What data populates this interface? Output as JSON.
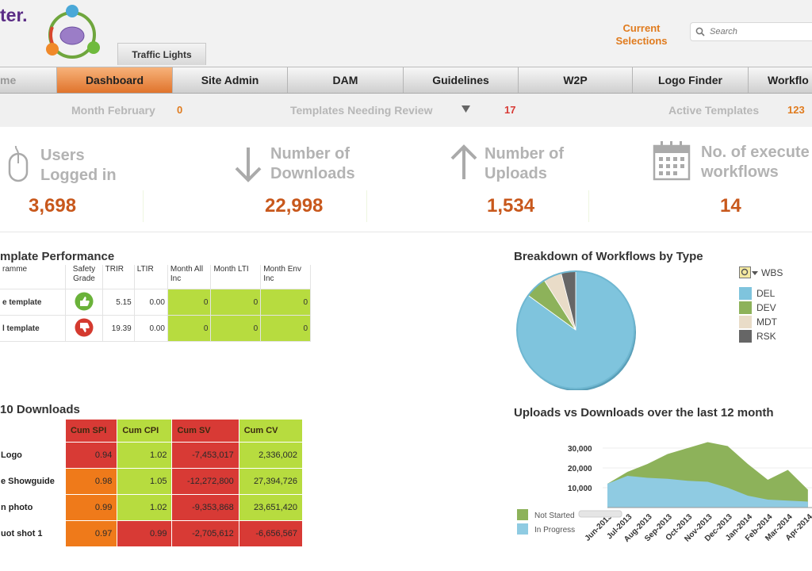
{
  "header": {
    "brand": "ter.",
    "traffic_tab": "Traffic Lights",
    "current_selections": "Current Selections",
    "search_placeholder": "Search"
  },
  "nav": {
    "items": [
      {
        "label": "me"
      },
      {
        "label": "Dashboard"
      },
      {
        "label": "Site Admin"
      },
      {
        "label": "DAM"
      },
      {
        "label": "Guidelines"
      },
      {
        "label": "W2P"
      },
      {
        "label": "Logo Finder"
      },
      {
        "label": "Workflo"
      }
    ]
  },
  "kpis": {
    "month_label": "Month February",
    "month_value": "0",
    "review_label": "Templates Needing Review",
    "review_value": "17",
    "active_label": "Active Templates",
    "active_value": "123",
    "colors": {
      "month": "#e07b1e",
      "review": "#d83a35",
      "active": "#e07b1e"
    }
  },
  "stats": [
    {
      "title_line1": "Users",
      "title_line2": "Logged in",
      "value": "3,698",
      "icon": "mouse-icon"
    },
    {
      "title_line1": "Number of",
      "title_line2": "Downloads",
      "value": "22,998",
      "icon": "arrow-down-icon"
    },
    {
      "title_line1": "Number of",
      "title_line2": "Uploads",
      "value": "1,534",
      "icon": "arrow-up-icon"
    },
    {
      "title_line1": "No. of execute",
      "title_line2": "workflows",
      "value": "14",
      "icon": "calendar-icon"
    }
  ],
  "template_performance": {
    "title": "mplate Performance",
    "headers": [
      "ramme",
      "Safety Grade",
      "TRIR",
      "LTIR",
      "Month All Inc",
      "Month LTI",
      "Month Env Inc"
    ],
    "rows": [
      {
        "name": "e template",
        "grade": "thumbs-up-icon",
        "trir": "5.15",
        "ltir": "0.00",
        "all_inc": "0",
        "lti": "0",
        "env_inc": "0"
      },
      {
        "name": "l template",
        "grade": "thumbs-down-icon",
        "trir": "19.39",
        "ltir": "0.00",
        "all_inc": "0",
        "lti": "0",
        "env_inc": "0"
      }
    ]
  },
  "top_downloads": {
    "title": "10 Downloads",
    "headers": [
      "Cum SPI",
      "Cum CPI",
      "Cum SV",
      "Cum CV"
    ],
    "header_colors": [
      "#d83a35",
      "#b7dc3f",
      "#d83a35",
      "#b7dc3f"
    ],
    "rows": [
      {
        "name": "Logo",
        "cells": [
          "0.94",
          "1.02",
          "-7,453,017",
          "2,336,002"
        ],
        "colors": [
          "#d83a35",
          "#b7dc3f",
          "#d83a35",
          "#b7dc3f"
        ]
      },
      {
        "name": "e Showguide",
        "cells": [
          "0.98",
          "1.05",
          "-12,272,800",
          "27,394,726"
        ],
        "colors": [
          "#ef7a1a",
          "#b7dc3f",
          "#d83a35",
          "#b7dc3f"
        ]
      },
      {
        "name": "n photo",
        "cells": [
          "0.99",
          "1.02",
          "-9,353,868",
          "23,651,420"
        ],
        "colors": [
          "#ef7a1a",
          "#b7dc3f",
          "#d83a35",
          "#b7dc3f"
        ]
      },
      {
        "name": "uot shot 1",
        "cells": [
          "0.97",
          "0.99",
          "-2,705,612",
          "-6,656,567"
        ],
        "colors": [
          "#ef7a1a",
          "#d83a35",
          "#d83a35",
          "#d83a35"
        ]
      }
    ]
  },
  "workflow_pie": {
    "title": "Breakdown of Workflows by Type",
    "legend_title": "WBS",
    "chart_data": {
      "type": "pie",
      "slices": [
        {
          "name": "DEL",
          "value": 85,
          "color": "#7fc4dd"
        },
        {
          "name": "DEV",
          "value": 6,
          "color": "#8db25a"
        },
        {
          "name": "MDT",
          "value": 5,
          "color": "#e9dcc8"
        },
        {
          "name": "RSK",
          "value": 4,
          "color": "#666666"
        }
      ]
    }
  },
  "uploads_downloads": {
    "title": "Uploads vs Downloads over the last 12 month",
    "chart_data": {
      "type": "area",
      "categories": [
        "Jun-2013",
        "Jul-2013",
        "Aug-2013",
        "Sep-2013",
        "Oct-2013",
        "Nov-2013",
        "Dec-2013",
        "Jan-2014",
        "Feb-2014",
        "Mar-2014",
        "Apr-2014"
      ],
      "yticks": [
        "30,000",
        "20,000",
        "10,000"
      ],
      "ylim": [
        0,
        40000
      ],
      "series": [
        {
          "name": "Not Started",
          "color": "#8db25a",
          "values": [
            12000,
            18000,
            22000,
            27000,
            30000,
            33000,
            31000,
            22000,
            14000,
            19000,
            9000
          ]
        },
        {
          "name": "In Progress",
          "color": "#8fcbe2",
          "values": [
            12000,
            16000,
            15000,
            14500,
            13500,
            13000,
            10000,
            6000,
            4000,
            3500,
            3000
          ]
        }
      ]
    }
  }
}
